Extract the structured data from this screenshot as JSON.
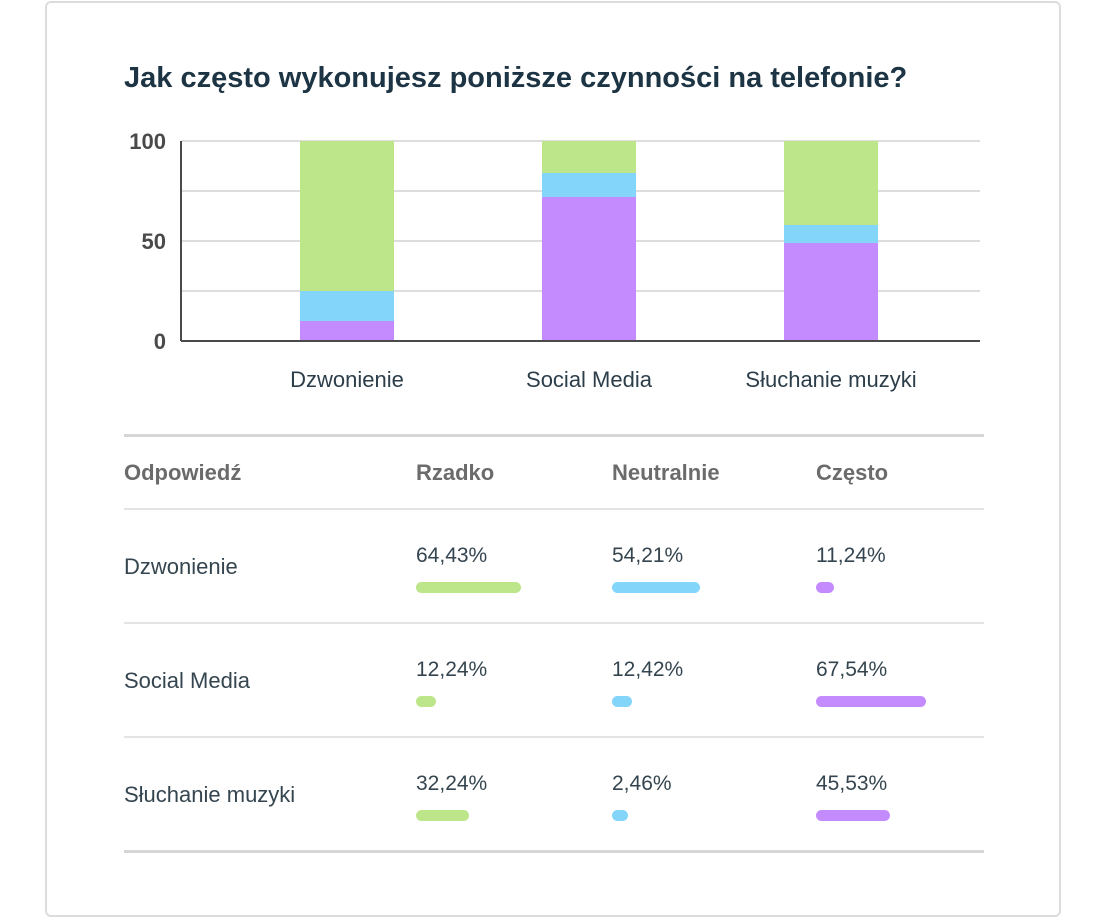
{
  "title": "Jak często wykonujesz poniższe czynności na telefonie?",
  "colors": {
    "rzadko": "#bde68a",
    "neutralnie": "#84d5fa",
    "czesto": "#c48bff",
    "grid": "#dddddd",
    "axis": "#4a4a4a"
  },
  "chart_data": {
    "type": "bar",
    "stacked": true,
    "categories": [
      "Dzwonienie",
      "Social Media",
      "Słuchanie muzyki"
    ],
    "series": [
      {
        "name": "Często",
        "color": "#c48bff",
        "values": [
          10,
          72,
          49
        ]
      },
      {
        "name": "Neutralnie",
        "color": "#84d5fa",
        "values": [
          15,
          12,
          9
        ]
      },
      {
        "name": "Rzadko",
        "color": "#bde68a",
        "values": [
          75,
          16,
          42
        ]
      }
    ],
    "yticks": [
      "0",
      "50",
      "100"
    ],
    "ytick_values": [
      0,
      50,
      100
    ],
    "gridlines": [
      25,
      50,
      75,
      100
    ],
    "ylim": [
      0,
      100
    ],
    "grid": true,
    "legend": "none"
  },
  "table": {
    "headers": [
      "Odpowiedź",
      "Rzadko",
      "Neutralnie",
      "Często"
    ],
    "rows": [
      {
        "label": "Dzwonienie",
        "values": [
          "64,43%",
          "54,21%",
          "11,24%"
        ],
        "levels": [
          64.43,
          54.21,
          11.24
        ]
      },
      {
        "label": "Social Media",
        "values": [
          "12,24%",
          "12,42%",
          "67,54%"
        ],
        "levels": [
          12.24,
          12.42,
          67.54
        ]
      },
      {
        "label": "Słuchanie muzyki",
        "values": [
          "32,24%",
          "2,46%",
          "45,53%"
        ],
        "levels": [
          32.24,
          2.46,
          45.53
        ]
      }
    ]
  }
}
